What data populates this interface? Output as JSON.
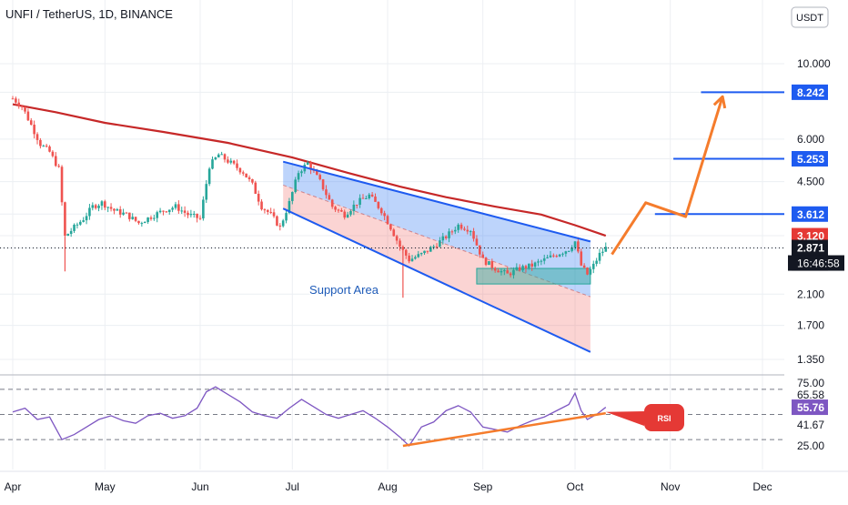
{
  "header": {
    "title": "UNFI / TetherUS, 1D, BINANCE"
  },
  "currency_badge": "USDT",
  "annotations": {
    "support_area": "Support Area",
    "rsi_label": "RSI"
  },
  "colors": {
    "background": "#ffffff",
    "grid": "#eceff3",
    "candle_up": "#26a69a",
    "candle_down": "#ef5350",
    "ma_line": "#c62828",
    "channel_line": "#1e5bf0",
    "projection": "#f57c2c",
    "rsi_line": "#7e57c2",
    "price_label_blue": "#1e5bf0",
    "price_label_red": "#e53935",
    "price_label_dark": "#131722"
  },
  "chart_data": [
    {
      "type": "candlestick",
      "title": "UNFI / TetherUS, 1D, BINANCE",
      "y_scale": "log",
      "x_axis": {
        "start": "2023-04-01",
        "end": "2023-12-10",
        "tick_labels": [
          {
            "label": "Apr",
            "date": "2023-04-01"
          },
          {
            "label": "May",
            "date": "2023-05-01"
          },
          {
            "label": "Jun",
            "date": "2023-06-01"
          },
          {
            "label": "Jul",
            "date": "2023-07-01"
          },
          {
            "label": "Aug",
            "date": "2023-08-01"
          },
          {
            "label": "Sep",
            "date": "2023-09-01"
          },
          {
            "label": "Oct",
            "date": "2023-10-01"
          },
          {
            "label": "Nov",
            "date": "2023-11-01"
          },
          {
            "label": "Dec",
            "date": "2023-12-01"
          }
        ]
      },
      "y_axis": {
        "ylim": [
          1.25,
          13.5
        ],
        "tick_labels": [
          "10.000",
          "6.000",
          "4.500",
          "2.100",
          "1.700",
          "1.350"
        ]
      },
      "grid": true,
      "price_series": [
        [
          "2023-04-01",
          7.9
        ],
        [
          "2023-04-04",
          7.5
        ],
        [
          "2023-04-07",
          6.6
        ],
        [
          "2023-04-10",
          5.8
        ],
        [
          "2023-04-13",
          5.5
        ],
        [
          "2023-04-16",
          4.9
        ],
        [
          "2023-04-18",
          3.1
        ],
        [
          "2023-04-21",
          3.3
        ],
        [
          "2023-04-24",
          3.5
        ],
        [
          "2023-04-27",
          3.8
        ],
        [
          "2023-04-30",
          3.9
        ],
        [
          "2023-05-04",
          3.7
        ],
        [
          "2023-05-08",
          3.6
        ],
        [
          "2023-05-12",
          3.4
        ],
        [
          "2023-05-16",
          3.55
        ],
        [
          "2023-05-20",
          3.7
        ],
        [
          "2023-05-24",
          3.8
        ],
        [
          "2023-05-28",
          3.6
        ],
        [
          "2023-06-01",
          3.5
        ],
        [
          "2023-06-04",
          5.0
        ],
        [
          "2023-06-07",
          5.4
        ],
        [
          "2023-06-11",
          5.1
        ],
        [
          "2023-06-15",
          4.8
        ],
        [
          "2023-06-18",
          4.4
        ],
        [
          "2023-06-21",
          3.8
        ],
        [
          "2023-06-24",
          3.6
        ],
        [
          "2023-06-27",
          3.3
        ],
        [
          "2023-06-30",
          3.9
        ],
        [
          "2023-07-03",
          4.8
        ],
        [
          "2023-07-06",
          5.1
        ],
        [
          "2023-07-10",
          4.5
        ],
        [
          "2023-07-14",
          3.8
        ],
        [
          "2023-07-18",
          3.6
        ],
        [
          "2023-07-22",
          3.9
        ],
        [
          "2023-07-26",
          4.1
        ],
        [
          "2023-07-30",
          3.7
        ],
        [
          "2023-08-02",
          3.3
        ],
        [
          "2023-08-05",
          2.9
        ],
        [
          "2023-08-08",
          2.65
        ],
        [
          "2023-08-12",
          2.75
        ],
        [
          "2023-08-16",
          2.9
        ],
        [
          "2023-08-20",
          3.1
        ],
        [
          "2023-08-24",
          3.35
        ],
        [
          "2023-08-28",
          3.25
        ],
        [
          "2023-09-01",
          2.65
        ],
        [
          "2023-09-05",
          2.5
        ],
        [
          "2023-09-09",
          2.4
        ],
        [
          "2023-09-13",
          2.5
        ],
        [
          "2023-09-17",
          2.55
        ],
        [
          "2023-09-21",
          2.65
        ],
        [
          "2023-09-25",
          2.75
        ],
        [
          "2023-09-29",
          2.85
        ],
        [
          "2023-10-01",
          3.0
        ],
        [
          "2023-10-03",
          2.55
        ],
        [
          "2023-10-05",
          2.4
        ],
        [
          "2023-10-07",
          2.55
        ],
        [
          "2023-10-09",
          2.75
        ],
        [
          "2023-10-11",
          2.871
        ]
      ],
      "moving_average": [
        [
          "2023-04-01",
          7.6
        ],
        [
          "2023-04-15",
          7.2
        ],
        [
          "2023-05-01",
          6.7
        ],
        [
          "2023-05-20",
          6.3
        ],
        [
          "2023-06-10",
          5.85
        ],
        [
          "2023-07-01",
          5.3
        ],
        [
          "2023-07-20",
          4.75
        ],
        [
          "2023-08-05",
          4.35
        ],
        [
          "2023-08-20",
          4.05
        ],
        [
          "2023-09-05",
          3.8
        ],
        [
          "2023-09-20",
          3.6
        ],
        [
          "2023-10-01",
          3.35
        ],
        [
          "2023-10-11",
          3.12
        ]
      ],
      "channel": {
        "upper": [
          [
            "2023-06-28",
            5.15
          ],
          [
            "2023-10-06",
            3.0
          ]
        ],
        "lower": [
          [
            "2023-06-28",
            3.75
          ],
          [
            "2023-10-06",
            1.42
          ]
        ]
      },
      "support_box": {
        "date_range": [
          "2023-08-30",
          "2023-10-06"
        ],
        "price_range": [
          2.25,
          2.5
        ]
      },
      "projection_path": [
        [
          "2023-10-13",
          2.75
        ],
        [
          "2023-10-24",
          3.9
        ],
        [
          "2023-11-06",
          3.55
        ],
        [
          "2023-11-18",
          8.0
        ]
      ],
      "horizontal_levels": [
        {
          "value": 8.242,
          "label": "8.242",
          "date_range": [
            "2023-11-11",
            "2023-12-20"
          ]
        },
        {
          "value": 5.253,
          "label": "5.253",
          "date_range": [
            "2023-11-02",
            "2023-12-20"
          ]
        },
        {
          "value": 3.612,
          "label": "3.612",
          "date_range": [
            "2023-10-27",
            "2023-12-20"
          ]
        }
      ],
      "price_labels": [
        {
          "value": 8.242,
          "label": "8.242",
          "style": "blue"
        },
        {
          "value": 5.253,
          "label": "5.253",
          "style": "blue"
        },
        {
          "value": 3.612,
          "label": "3.612",
          "style": "blue"
        },
        {
          "value": 3.12,
          "label": "3.120",
          "style": "red"
        },
        {
          "value": 2.871,
          "label": "2.871",
          "style": "dark",
          "sublabel": "16:46:58"
        }
      ]
    },
    {
      "type": "line",
      "title": "",
      "series": [
        {
          "name": "RSI",
          "values": [
            [
              "2023-04-01",
              52
            ],
            [
              "2023-04-05",
              55
            ],
            [
              "2023-04-09",
              46
            ],
            [
              "2023-04-13",
              48
            ],
            [
              "2023-04-17",
              30
            ],
            [
              "2023-04-21",
              34
            ],
            [
              "2023-04-25",
              40
            ],
            [
              "2023-04-29",
              46
            ],
            [
              "2023-05-03",
              49
            ],
            [
              "2023-05-07",
              45
            ],
            [
              "2023-05-11",
              43
            ],
            [
              "2023-05-15",
              49
            ],
            [
              "2023-05-19",
              51
            ],
            [
              "2023-05-23",
              47
            ],
            [
              "2023-05-27",
              49
            ],
            [
              "2023-05-31",
              55
            ],
            [
              "2023-06-03",
              68
            ],
            [
              "2023-06-06",
              72
            ],
            [
              "2023-06-10",
              66
            ],
            [
              "2023-06-14",
              60
            ],
            [
              "2023-06-18",
              52
            ],
            [
              "2023-06-22",
              49
            ],
            [
              "2023-06-26",
              47
            ],
            [
              "2023-06-30",
              55
            ],
            [
              "2023-07-04",
              62
            ],
            [
              "2023-07-08",
              56
            ],
            [
              "2023-07-12",
              50
            ],
            [
              "2023-07-16",
              47
            ],
            [
              "2023-07-20",
              50
            ],
            [
              "2023-07-24",
              53
            ],
            [
              "2023-07-28",
              47
            ],
            [
              "2023-08-01",
              40
            ],
            [
              "2023-08-05",
              32
            ],
            [
              "2023-08-08",
              25
            ],
            [
              "2023-08-12",
              40
            ],
            [
              "2023-08-16",
              44
            ],
            [
              "2023-08-20",
              53
            ],
            [
              "2023-08-24",
              57
            ],
            [
              "2023-08-28",
              52
            ],
            [
              "2023-09-01",
              40
            ],
            [
              "2023-09-05",
              38
            ],
            [
              "2023-09-09",
              36
            ],
            [
              "2023-09-13",
              41
            ],
            [
              "2023-09-17",
              45
            ],
            [
              "2023-09-21",
              48
            ],
            [
              "2023-09-25",
              53
            ],
            [
              "2023-09-29",
              58
            ],
            [
              "2023-10-01",
              67
            ],
            [
              "2023-10-03",
              53
            ],
            [
              "2023-10-05",
              46
            ],
            [
              "2023-10-08",
              50
            ],
            [
              "2023-10-11",
              55.76
            ]
          ]
        }
      ],
      "ylim": [
        20,
        78
      ],
      "y_axis": {
        "tick_labels": [
          "75.00",
          "65.58",
          "41.67",
          "25.00"
        ]
      },
      "reference_lines": [
        70,
        50,
        30
      ],
      "trendline": [
        [
          "2023-08-06",
          25
        ],
        [
          "2023-10-11",
          51
        ]
      ],
      "current_value_label": "55.76",
      "annotation": "RSI"
    }
  ]
}
